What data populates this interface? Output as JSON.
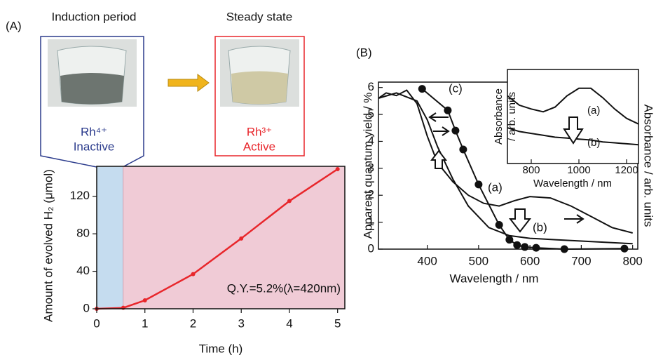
{
  "chart_data": [
    {
      "type": "line",
      "panel": "(A)",
      "xlabel": "Time (h)",
      "ylabel": "Amount of evolved H₂ (μmol)",
      "x": [
        0,
        0.55,
        1,
        2,
        3,
        4,
        5
      ],
      "values": [
        0,
        1,
        9,
        37,
        75,
        115,
        149
      ],
      "color": "#e8262b",
      "xlim": [
        0,
        5.15
      ],
      "ylim": [
        0,
        152
      ],
      "xticks": [
        0,
        1,
        2,
        3,
        4,
        5
      ],
      "yticks": [
        0,
        40,
        80,
        120
      ],
      "regions": [
        {
          "label": "Induction period",
          "xlim": [
            0,
            0.55
          ],
          "color": "#c5dcef",
          "state": "Rh⁴⁺",
          "activity": "Inactive",
          "state_color": "#2b3b8c"
        },
        {
          "label": "Steady state",
          "xlim": [
            0.55,
            5.15
          ],
          "color": "#f0cbd6",
          "state": "Rh³⁺",
          "activity": "Active",
          "state_color": "#e8262b"
        }
      ],
      "annotation": "Q.Y.=5.2%(λ=420nm)"
    },
    {
      "type": "line",
      "panel": "(B)",
      "xlabel": "Wavelength / nm",
      "ylabel": "Apparent quantum yield / %",
      "y2label": "Absorbance / arb. units",
      "xlim": [
        305,
        810
      ],
      "ylim": [
        0,
        6.2
      ],
      "y2lim": [
        0,
        6.2
      ],
      "xticks": [
        400,
        500,
        600,
        700,
        800
      ],
      "yticks": [
        0,
        1,
        2,
        3,
        4,
        5,
        6
      ],
      "series": [
        {
          "name": "(c)",
          "color": "#111111",
          "markers": true,
          "x": [
            390,
            440,
            455,
            470,
            500,
            540,
            560,
            575,
            590,
            612,
            667,
            784
          ],
          "values": [
            5.95,
            5.15,
            4.4,
            3.7,
            2.4,
            0.9,
            0.35,
            0.15,
            0.08,
            0.05,
            0,
            0.02
          ]
        },
        {
          "name": "(a)",
          "color": "#111111",
          "axis": "y2",
          "x": [
            305,
            320,
            340,
            360,
            380,
            400,
            420,
            450,
            480,
            510,
            540,
            570,
            600,
            640,
            680,
            720,
            760,
            800
          ],
          "values": [
            5.6,
            5.8,
            5.7,
            5.9,
            5.4,
            4.2,
            3.2,
            2.5,
            2.0,
            1.7,
            1.6,
            1.8,
            1.95,
            1.9,
            1.6,
            1.2,
            0.8,
            0.6
          ]
        },
        {
          "name": "(b)",
          "color": "#111111",
          "axis": "y2",
          "x": [
            305,
            340,
            380,
            400,
            420,
            450,
            480,
            520,
            560,
            600,
            650,
            700,
            800
          ],
          "values": [
            5.6,
            5.8,
            5.5,
            4.8,
            3.8,
            2.6,
            1.6,
            0.8,
            0.5,
            0.4,
            0.35,
            0.3,
            0.2
          ]
        }
      ]
    },
    {
      "type": "line",
      "xlabel": "Wavelength / nm",
      "ylabel": [
        "Absorbance",
        "/ arb. units"
      ],
      "xlim": [
        700,
        1250
      ],
      "ylim": [
        0,
        1
      ],
      "xticks": [
        800,
        1000,
        1200
      ],
      "series": [
        {
          "name": "(a)",
          "color": "#111111",
          "x": [
            700,
            750,
            800,
            850,
            900,
            950,
            1000,
            1050,
            1100,
            1150,
            1200,
            1250
          ],
          "values": [
            0.72,
            0.62,
            0.58,
            0.55,
            0.6,
            0.72,
            0.8,
            0.8,
            0.7,
            0.58,
            0.48,
            0.42
          ]
        },
        {
          "name": "(b)",
          "color": "#111111",
          "x": [
            700,
            750,
            800,
            850,
            900,
            950,
            1000,
            1050,
            1100,
            1150,
            1200,
            1250
          ],
          "values": [
            0.38,
            0.34,
            0.32,
            0.3,
            0.28,
            0.27,
            0.26,
            0.25,
            0.23,
            0.22,
            0.21,
            0.2
          ]
        }
      ]
    }
  ]
}
